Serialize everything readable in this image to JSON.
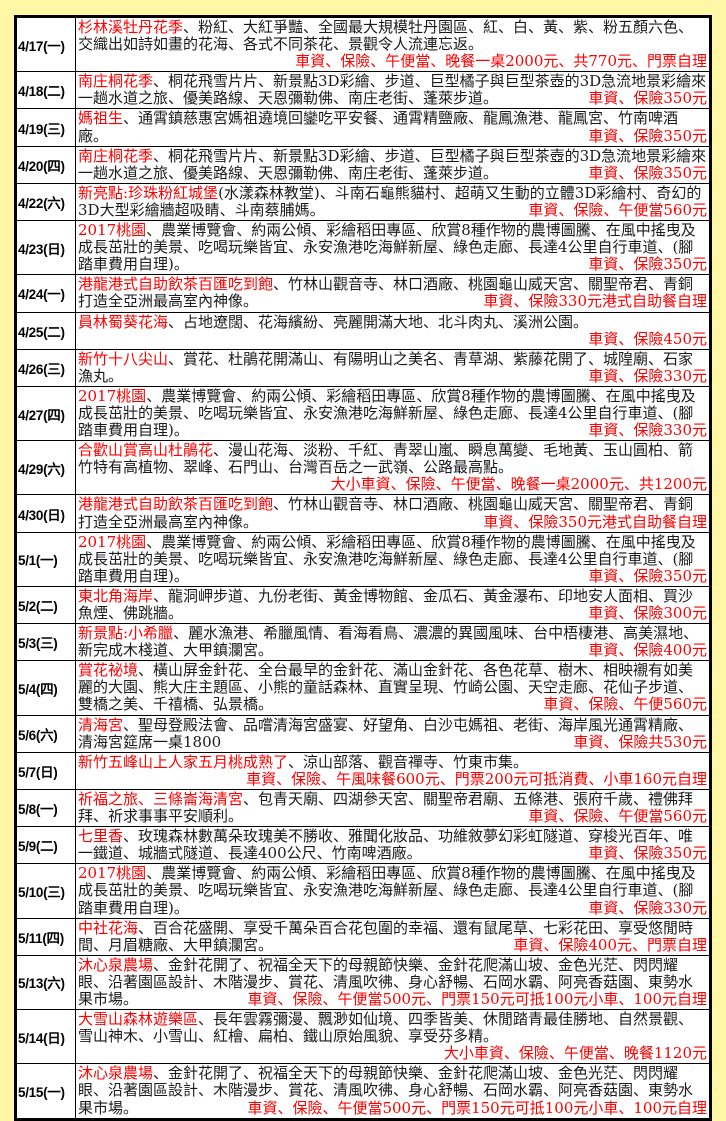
{
  "colors": {
    "page_background": "#FFF7A6",
    "table_background": "#FFFFFF",
    "border": "#000000",
    "body_text": "#1A1A1A",
    "highlight_red": "#FF0000",
    "price_red": "#FF0000"
  },
  "schedule": {
    "rows": [
      {
        "date": "4/17(一)",
        "highlight": "杉林溪牡丹花季",
        "body": "、粉紅、大紅爭豔、全國最大規模牡丹園區、紅、白、黃、紫、粉五顏六色、交織出如詩如畫的花海、各式不同茶花、景觀令人流連忘返。",
        "price": "車資、保險、午便當、晚餐一桌2000元、共770元、門票自理"
      },
      {
        "date": "4/18(二)",
        "highlight": "南庄桐花季",
        "body": "、桐花飛雪片片、新景點3D彩繪、步道、巨型橘子與巨型茶壺的3D急流地景彩繪來一趟水道之旅、優美路線、天恩彌勒佛、南庄老街、蓬萊步道。",
        "price": "車資、保險350元"
      },
      {
        "date": "4/19(三)",
        "highlight": "媽祖生",
        "body": "、通霄鎮慈惠宮媽祖遶境回鑾吃平安餐、通霄精鹽廠、龍鳳漁港、龍鳳宮、竹南啤酒廠。",
        "price": "車資、保險350元"
      },
      {
        "date": "4/20(四)",
        "highlight": "南庄桐花季",
        "body": "、桐花飛雪片片、新景點3D彩繪、步道、巨型橘子與巨型茶壺的3D急流地景彩繪來一趟水道之旅、優美路線、天恩彌勒佛、南庄老街、蓬萊步道。",
        "price": "車資、保險350元"
      },
      {
        "date": "4/22(六)",
        "highlight": "新亮點:珍珠粉紅城堡",
        "body": "(水漾森林教堂)、斗南石龜熊貓村、超萌又生動的立體3D彩繪村、奇幻的3D大型彩繪牆超吸睛、斗南蔡脯媽。",
        "price": "車資、保險、午便當560元"
      },
      {
        "date": "4/23(日)",
        "highlight": "2017桃園",
        "body": "、農業博覽會、約兩公傾、彩繪稻田專區、欣賞8種作物的農博圖騰、在風中搖曳及成長茁壯的美景、吃喝玩樂皆宜、永安漁港吃海鮮新屋、綠色走廊、長達4公里自行車道、(腳踏車費用自理)。",
        "price": "車資、保險350元"
      },
      {
        "date": "4/24(一)",
        "highlight": "港龍港式自助飲茶百匯吃到飽",
        "body": "、竹林山觀音寺、林口酒廠、桃園龜山威天宮、關聖帝君、青銅打造全亞洲最高室內神像。",
        "price": "車資、保險330元港式自助餐自理"
      },
      {
        "date": "4/25(二)",
        "highlight": "員林蜀葵花海",
        "body": "、占地遼闊、花海繽紛、亮麗開滿大地、北斗肉丸、溪洲公園。",
        "price": "車資、保險450元"
      },
      {
        "date": "4/26(三)",
        "highlight": "新竹十八尖山",
        "body": "、賞花、杜鵑花開滿山、有陽明山之美名、青草湖、紫藤花開了、城隍廟、石家漁丸。",
        "price": "車資、保險330元"
      },
      {
        "date": "4/27(四)",
        "highlight": "2017桃園",
        "body": "、農業博覽會、約兩公傾、彩繪稻田專區、欣賞8種作物的農博圖騰、在風中搖曳及成長茁壯的美景、吃喝玩樂皆宜、永安漁港吃海鮮新屋、綠色走廊、長達4公里自行車道、(腳踏車費用自理)。",
        "price": "車資、保險330元"
      },
      {
        "date": "4/29(六)",
        "highlight": "合歡山賞高山杜鵑花",
        "body": "、漫山花海、淡粉、千紅、青翠山嵐、瞬息萬變、毛地黃、玉山圓柏、箭竹特有高植物、翠峰、石門山、台灣百岳之一武嶺、公路最高點。",
        "price": "大小車資、保險、午便當、晚餐一桌2000元、共1200元"
      },
      {
        "date": "4/30(日)",
        "highlight": "港龍港式自助飲茶百匯吃到飽",
        "body": "、竹林山觀音寺、林口酒廠、桃園龜山威天宮、關聖帝君、青銅打造全亞洲最高室內神像。",
        "price": "車資、保險350元港式自助餐自理"
      },
      {
        "date": "5/1(一)",
        "highlight": "2017桃園",
        "body": "、農業博覽會、約兩公傾、彩繪稻田專區、欣賞8種作物的農博圖騰、在風中搖曳及成長茁壯的美景、吃喝玩樂皆宜、永安漁港吃海鮮新屋、綠色走廊、長達4公里自行車道、(腳踏車費用自理)。",
        "price": "車資、保險350元"
      },
      {
        "date": "5/2(二)",
        "highlight": "東北角海岸",
        "body": "、龍洞岬步道、九份老街、黃金博物館、金瓜石、黃金瀑布、印地安人面相、買沙魚煙、佛跳牆。",
        "price": "車資、保險300元"
      },
      {
        "date": "5/3(三)",
        "highlight": "新景點:小希臘",
        "body": "、麗水漁港、希臘風情、看海看鳥、濃濃的異國風味、台中梧棲港、高美濕地、新完成木棧道、大甲鎮瀾宮。",
        "price": "車資、保險400元"
      },
      {
        "date": "5/4(四)",
        "highlight": "賞花祕境",
        "body": "、橫山屏金針花、全台最早的金針花、滿山金針花、各色花草、樹木、相映襯有如美麗的大園、熊大庄主題區、小熊的童話森林、直實呈現、竹崎公園、天空走廊、花仙子步道、雙橋之美、千禧橋、弘景橋。",
        "price": "車資、保險、午便560元"
      },
      {
        "date": "5/6(六)",
        "highlight": "清海宮",
        "body": "、聖母登殿法會、品嚐清海宮盛宴、好望角、白沙屯媽祖、老街、海岸風光通霄精廠、清海宮筵席一桌1800",
        "price": "車資、保險共530元"
      },
      {
        "date": "5/7(日)",
        "highlight": "新竹五峰山上人家五月桃成熟了",
        "body": "、涼山部落、觀音禪寺、竹東市集。",
        "price": "車資、保險、午風味餐600元、門票200元可抵消費、小車160元自理"
      },
      {
        "date": "5/8(一)",
        "highlight": "祈福之旅、三條崙海清宮",
        "body": "、包青天廟、四湖參天宮、關聖帝君廟、五條港、張府千歲、禮佛拜拜、祈求事事平安順利。",
        "price": "車資、保險、午便當560元"
      },
      {
        "date": "5/9(二)",
        "highlight": "七里香",
        "body": "、玫瑰森林數萬朵玫瑰美不勝收、雅聞化妝品、功維敘夢幻彩虹隧道、穿梭光百年、唯一鐵道、城牆式隧道、長達400公尺、竹南啤酒廠。",
        "price": "車資、保險350元"
      },
      {
        "date": "5/10(三)",
        "highlight": "2017桃園",
        "body": "、農業博覽會、約兩公傾、彩繪稻田專區、欣賞8種作物的農博圖騰、在風中搖曳及成長茁壯的美景、吃喝玩樂皆宜、永安漁港吃海鮮新屋、綠色走廊、長達4公里自行車道、(腳踏車費用自理)。",
        "price": "車資、保險330元"
      },
      {
        "date": "5/11(四)",
        "highlight": "中社花海",
        "body": "、百合花盛開、享受千萬朵百合花包圍的幸福、還有鼠尾草、七彩花田、享受悠閒時間、月眉糖廠、大甲鎮瀾宮。",
        "price": "車資、保險400元、門票自理"
      },
      {
        "date": "5/13(六)",
        "highlight": "沐心泉農場",
        "body": "、金針花開了、祝福全天下的母親節快樂、金針花爬滿山坡、金色光茫、閃閃耀眼、沿著園區設計、木階漫步、賞花、清風吹彿、身心舒暢、石岡水霸、阿亮香菇園、東勢水果市場。",
        "price": "車資、保險、午便當500元、門票150元可抵100元小車、100元自理"
      },
      {
        "date": "5/14(日)",
        "highlight": "大雪山森林遊樂區",
        "body": "、長年雲霧彌漫、飄渺如仙境、四季皆美、休閒踏青最佳勝地、自然景觀、雪山神木、小雪山、紅檜、扁柏、鐵山原始風貌、享受芬多精。",
        "price": "大小車資、保險、午便當、晚餐1120元"
      },
      {
        "date": "5/15(一)",
        "highlight": "沐心泉農場",
        "body": "、金針花開了、祝福全天下的母親節快樂、金針花爬滿山坡、金色光茫、閃閃耀眼、沿著園區設計、木階漫步、賞花、清風吹彿、身心舒暢、石岡水霸、阿亮香菇園、東勢水果市場。",
        "price": "車資、保險、午便當500元、門票150元可抵100元小車、100元自理"
      }
    ]
  }
}
